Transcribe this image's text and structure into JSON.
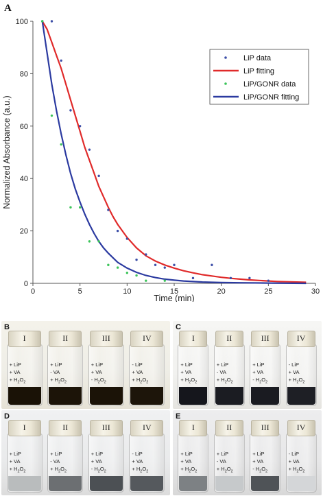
{
  "panel_a_label": "A",
  "chart_data": {
    "type": "scatter",
    "xlabel": "Time (min)",
    "ylabel": "Normalized Absorbance (a.u.)",
    "xlim": [
      0,
      30
    ],
    "ylim": [
      0,
      100
    ],
    "xticks": [
      "0",
      "5",
      "10",
      "15",
      "20",
      "25",
      "30"
    ],
    "yticks": [
      "0",
      "20",
      "40",
      "60",
      "80",
      "100"
    ],
    "grid": false,
    "legend_position": "top-right",
    "series": [
      {
        "name": "LiP data",
        "kind": "points",
        "color": "#3d4fa8",
        "x": [
          1,
          2,
          3,
          4,
          5,
          6,
          7,
          8,
          9,
          10,
          11,
          12,
          13,
          14,
          15,
          17,
          19,
          21,
          23,
          25
        ],
        "y": [
          100,
          100,
          85,
          66,
          60,
          51,
          41,
          28,
          20,
          17,
          9,
          11,
          7,
          6,
          7,
          2,
          7,
          2,
          2,
          1
        ]
      },
      {
        "name": "LiP fitting",
        "kind": "line",
        "color": "#e02a2a",
        "x": [
          1,
          1.5,
          2,
          2.5,
          3,
          3.5,
          4,
          4.5,
          5,
          5.5,
          6,
          6.5,
          7,
          7.5,
          8,
          8.5,
          9,
          10,
          11,
          12,
          13,
          14,
          15,
          16,
          17,
          18,
          19,
          20,
          21,
          22,
          23,
          24,
          25,
          26,
          27,
          28,
          29
        ],
        "y": [
          100,
          97,
          92,
          87,
          82,
          76,
          70,
          64,
          58,
          52,
          47,
          42,
          37,
          33,
          29,
          25.5,
          22.5,
          17.5,
          13.5,
          10.5,
          8.5,
          7,
          5.8,
          4.8,
          4,
          3.3,
          2.8,
          2.3,
          1.9,
          1.6,
          1.3,
          1.1,
          0.9,
          0.7,
          0.6,
          0.5,
          0.4
        ]
      },
      {
        "name": "LiP/GONR data",
        "kind": "points",
        "color": "#3cc45a",
        "x": [
          1,
          2,
          3,
          4,
          5,
          6,
          7,
          8,
          9,
          10,
          11,
          12,
          14
        ],
        "y": [
          100,
          64,
          53,
          29,
          29,
          16,
          16,
          7,
          6,
          4,
          3,
          1,
          1
        ]
      },
      {
        "name": "LiP/GONR fitting",
        "kind": "line",
        "color": "#2b3aa0",
        "x": [
          1,
          1.5,
          2,
          2.5,
          3,
          3.5,
          4,
          4.5,
          5,
          5.5,
          6,
          6.5,
          7,
          7.5,
          8,
          9,
          10,
          11,
          12,
          13,
          14,
          15,
          16,
          18,
          20,
          22,
          25,
          29
        ],
        "y": [
          100,
          88,
          76,
          66,
          57,
          49,
          42,
          36,
          31,
          26.5,
          22.5,
          19,
          16,
          13.5,
          11.5,
          8,
          5.8,
          4.2,
          3,
          2.2,
          1.6,
          1.2,
          0.9,
          0.5,
          0.3,
          0.2,
          0.1,
          0
        ]
      }
    ]
  },
  "photo_panels": [
    {
      "letter": "B",
      "vials": [
        {
          "cap": "I",
          "lines": [
            "+ LiP",
            "+ VA",
            "+ H2O2"
          ],
          "liquid": "#1a1206"
        },
        {
          "cap": "II",
          "lines": [
            "+ LiP",
            "- VA",
            "+ H2O2"
          ],
          "liquid": "#1c1408"
        },
        {
          "cap": "III",
          "lines": [
            "+ LiP",
            "+ VA",
            "- H2O2"
          ],
          "liquid": "#1b1307"
        },
        {
          "cap": "IV",
          "lines": [
            "- LiP",
            "+ VA",
            "+ H2O2"
          ],
          "liquid": "#1d150a"
        }
      ]
    },
    {
      "letter": "C",
      "vials": [
        {
          "cap": "I",
          "lines": [
            "+ LiP",
            "+ VA",
            "+ H2O2"
          ],
          "liquid": "#15161c"
        },
        {
          "cap": "II",
          "lines": [
            "+ LiP",
            "- VA",
            "+ H2O2"
          ],
          "liquid": "#1b1c22"
        },
        {
          "cap": "III",
          "lines": [
            "+ LiP",
            "+ VA",
            "- H2O2"
          ],
          "liquid": "#1a1b21"
        },
        {
          "cap": "IV",
          "lines": [
            "- LiP",
            "+ VA",
            "+ H2O2"
          ],
          "liquid": "#1e1f25"
        }
      ]
    },
    {
      "letter": "D",
      "vials": [
        {
          "cap": "I",
          "lines": [
            "+ LiP",
            "+ VA",
            "+ H2O2"
          ],
          "liquid": "#b9bcbd"
        },
        {
          "cap": "II",
          "lines": [
            "+ LiP",
            "- VA",
            "+ H2O2"
          ],
          "liquid": "#6c6f72"
        },
        {
          "cap": "III",
          "lines": [
            "+ LiP",
            "+ VA",
            "- H2O2"
          ],
          "liquid": "#4c5054"
        },
        {
          "cap": "IV",
          "lines": [
            "- LiP",
            "+ VA",
            "+ H2O2"
          ],
          "liquid": "#55595d"
        }
      ]
    },
    {
      "letter": "E",
      "vials": [
        {
          "cap": "I",
          "lines": [
            "+ LiP",
            "+ VA",
            "+ H2O2"
          ],
          "liquid": "#7d8184"
        },
        {
          "cap": "II",
          "lines": [
            "+ LiP",
            "- VA",
            "+ H2O2"
          ],
          "liquid": "#c6c9cb"
        },
        {
          "cap": "III",
          "lines": [
            "+ LiP",
            "+ VA",
            "- H2O2"
          ],
          "liquid": "#4f5357"
        },
        {
          "cap": "IV",
          "lines": [
            "- LiP",
            "+ VA",
            "+ H2O2"
          ],
          "liquid": "#d4d6d8"
        }
      ]
    }
  ]
}
